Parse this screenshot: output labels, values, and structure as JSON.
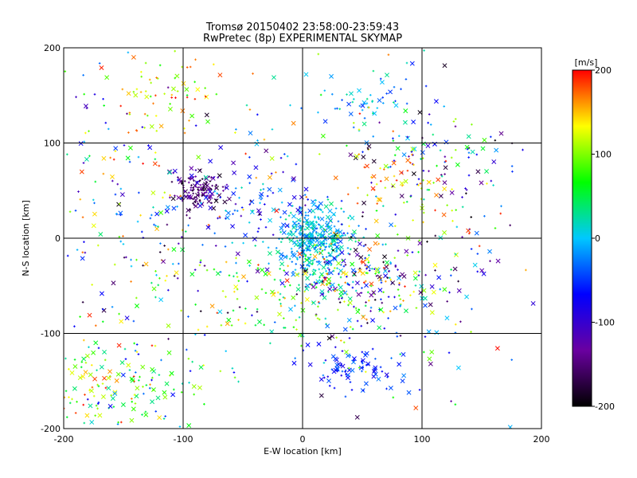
{
  "title_line1": "Tromsø 20150402 23:58:00-23:59:43",
  "title_line2": "RwPretec (8p) EXPERIMENTAL SKYMAP",
  "chart_data": {
    "type": "scatter",
    "xlabel": "E-W location [km]",
    "ylabel": "N-S location [km]",
    "xlim": [
      -200,
      200
    ],
    "ylim": [
      -200,
      200
    ],
    "xticks": [
      "-200",
      "-100",
      "0",
      "100",
      "200"
    ],
    "yticks": [
      "-200",
      "-100",
      "0",
      "100",
      "200"
    ],
    "grid_lines_x": [
      -100,
      0,
      100
    ],
    "grid_lines_y": [
      -100,
      0,
      100
    ],
    "markers": [
      "x",
      "+"
    ],
    "colorbar": {
      "label": "[m/s]",
      "range": [
        -200,
        200
      ],
      "ticks": [
        "200",
        "100",
        "0",
        "-100",
        "-200"
      ],
      "colormap": [
        "#000000",
        "#6a00a0",
        "#0000ff",
        "#00c8ff",
        "#00ff00",
        "#ffff00",
        "#ff0000"
      ]
    },
    "clusters": [
      {
        "cx": 10,
        "cy": 0,
        "sx": 15,
        "sy": 18,
        "n": 360,
        "vmin": -40,
        "vmax": 40
      },
      {
        "cx": 45,
        "cy": -40,
        "sx": 30,
        "sy": 25,
        "n": 240,
        "vmin": -200,
        "vmax": 200
      },
      {
        "cx": -88,
        "cy": 48,
        "sx": 10,
        "sy": 10,
        "n": 130,
        "vmin": -190,
        "vmax": -120
      },
      {
        "cx": -50,
        "cy": 40,
        "sx": 35,
        "sy": 25,
        "n": 110,
        "vmin": -120,
        "vmax": 30
      },
      {
        "cx": -110,
        "cy": 150,
        "sx": 22,
        "sy": 25,
        "n": 70,
        "vmin": 60,
        "vmax": 200
      },
      {
        "cx": 50,
        "cy": 140,
        "sx": 25,
        "sy": 20,
        "n": 60,
        "vmin": -60,
        "vmax": 40
      },
      {
        "cx": 110,
        "cy": 80,
        "sx": 35,
        "sy": 25,
        "n": 90,
        "vmin": -200,
        "vmax": 120
      },
      {
        "cx": 45,
        "cy": -135,
        "sx": 20,
        "sy": 15,
        "n": 90,
        "vmin": -90,
        "vmax": -20
      },
      {
        "cx": -165,
        "cy": -155,
        "sx": 30,
        "sy": 25,
        "n": 110,
        "vmin": 20,
        "vmax": 200
      },
      {
        "cx": -125,
        "cy": -150,
        "sx": 30,
        "sy": 25,
        "n": 60,
        "vmin": -80,
        "vmax": 120
      },
      {
        "cx": -20,
        "cy": -60,
        "sx": 45,
        "sy": 30,
        "n": 110,
        "vmin": 10,
        "vmax": 160
      },
      {
        "cx": -120,
        "cy": -30,
        "sx": 50,
        "sy": 40,
        "n": 100,
        "vmin": -200,
        "vmax": 200
      },
      {
        "cx": 120,
        "cy": -50,
        "sx": 40,
        "sy": 60,
        "n": 80,
        "vmin": -200,
        "vmax": 200
      },
      {
        "cx": 80,
        "cy": 60,
        "sx": 30,
        "sy": 20,
        "n": 60,
        "vmin": 100,
        "vmax": 200
      },
      {
        "cx": -160,
        "cy": 80,
        "sx": 25,
        "sy": 50,
        "n": 60,
        "vmin": -120,
        "vmax": 200
      },
      {
        "cx": 0,
        "cy": 0,
        "sx": 110,
        "sy": 110,
        "n": 180,
        "vmin": -200,
        "vmax": 200
      }
    ]
  }
}
